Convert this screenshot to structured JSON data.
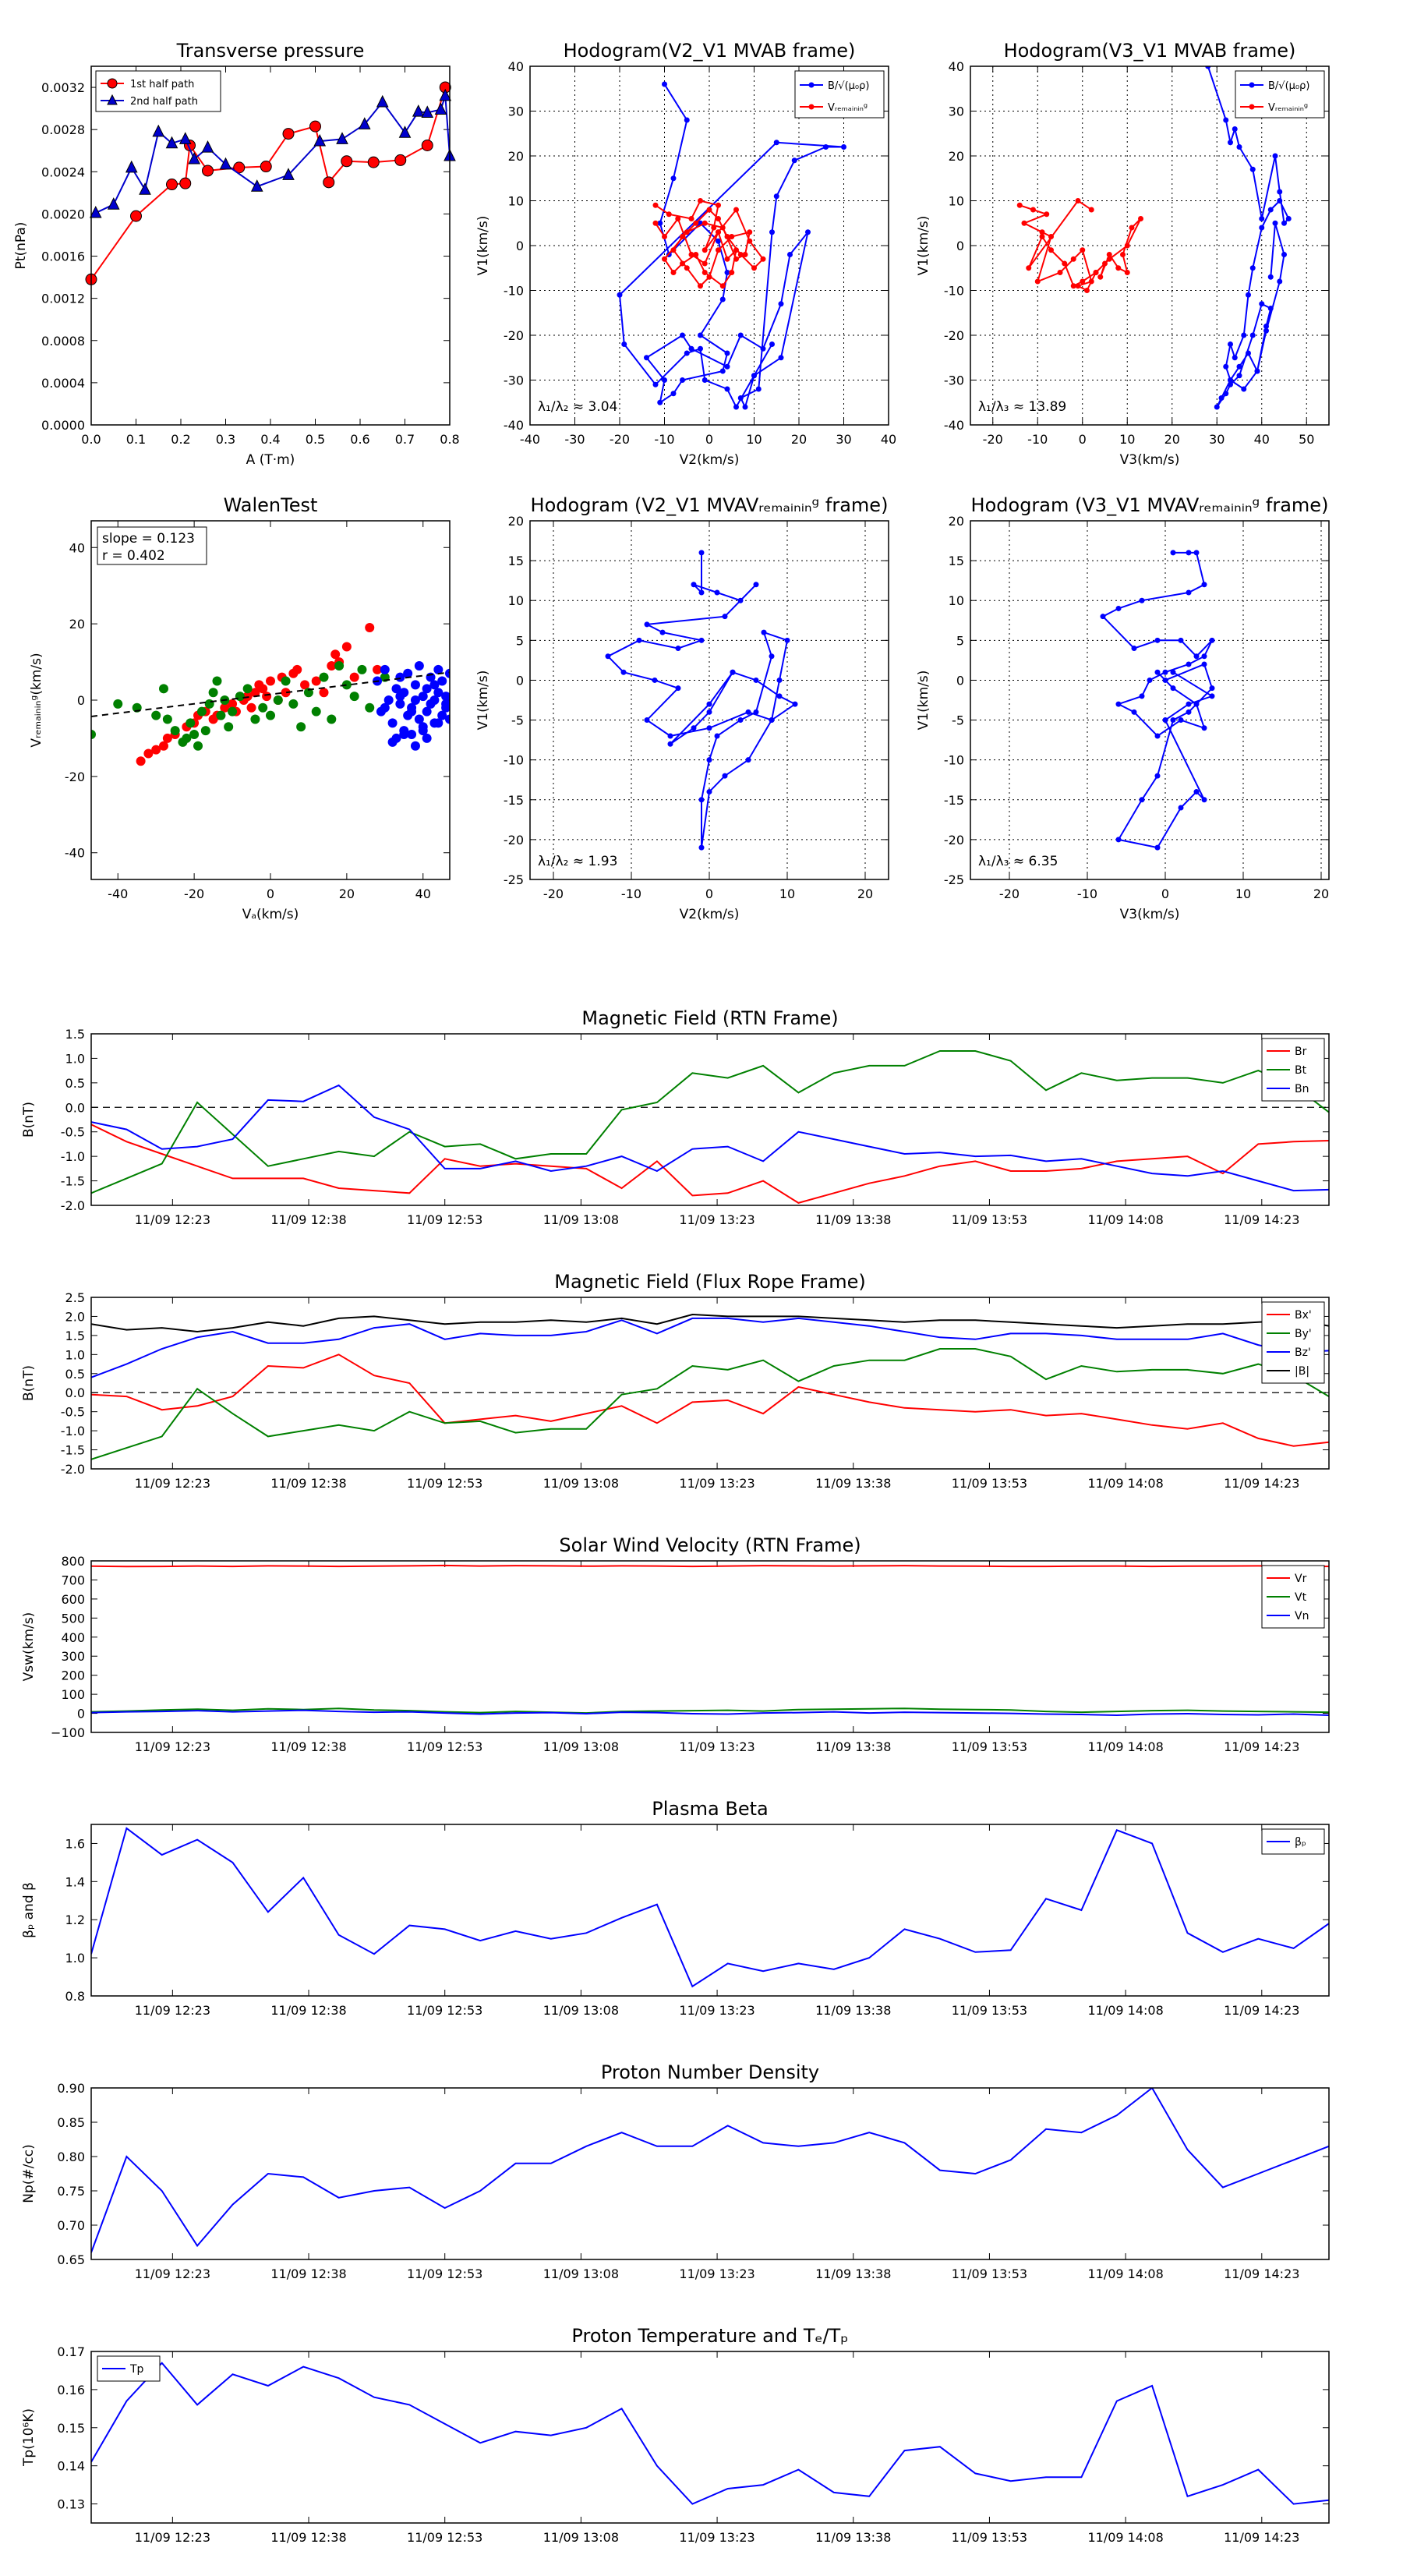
{
  "chart_data": [
    {
      "id": "pt",
      "type": "line",
      "title": "Transverse pressure",
      "xlabel": "A (T·m)",
      "ylabel": "Pt(nPa)",
      "xlim": [
        0,
        0.8
      ],
      "ylim": [
        0,
        0.0034
      ],
      "xticks": [
        0,
        0.1,
        0.2,
        0.3,
        0.4,
        0.5,
        0.6,
        0.7,
        0.8
      ],
      "xticklabels": [
        "0.0",
        "0.1",
        "0.2",
        "0.3",
        "0.4",
        "0.5",
        "0.6",
        "0.7",
        "0.8"
      ],
      "yticks": [
        0,
        0.0004,
        0.0008,
        0.0012,
        0.0016,
        0.002,
        0.0024,
        0.0028,
        0.0032
      ],
      "yticklabels": [
        "0.0000",
        "0.0004",
        "0.0008",
        "0.0012",
        "0.0016",
        "0.0020",
        "0.0024",
        "0.0028",
        "0.0032"
      ],
      "grid": false,
      "legend": "top-left",
      "series": [
        {
          "name": "1st half path",
          "color": "#ff0000",
          "marker": "circle",
          "x": [
            0.0,
            0.1,
            0.18,
            0.21,
            0.22,
            0.26,
            0.33,
            0.39,
            0.44,
            0.5,
            0.53,
            0.57,
            0.63,
            0.69,
            0.75,
            0.79
          ],
          "y": [
            0.00138,
            0.00198,
            0.00228,
            0.00229,
            0.00265,
            0.00241,
            0.00244,
            0.00245,
            0.00276,
            0.00283,
            0.0023,
            0.0025,
            0.00249,
            0.00251,
            0.00265,
            0.0032
          ]
        },
        {
          "name": "2nd half path",
          "color": "#0000cc",
          "marker": "triangle",
          "x": [
            0.01,
            0.05,
            0.09,
            0.12,
            0.15,
            0.18,
            0.21,
            0.23,
            0.26,
            0.3,
            0.37,
            0.44,
            0.51,
            0.56,
            0.61,
            0.65,
            0.7,
            0.73,
            0.75,
            0.78,
            0.79,
            0.8
          ],
          "y": [
            0.00201,
            0.00209,
            0.00244,
            0.00223,
            0.00278,
            0.00267,
            0.00271,
            0.00252,
            0.00263,
            0.00247,
            0.00226,
            0.00237,
            0.00269,
            0.00271,
            0.00285,
            0.00306,
            0.00277,
            0.00297,
            0.00296,
            0.00299,
            0.00312,
            0.00255
          ]
        }
      ]
    },
    {
      "id": "h1",
      "type": "line",
      "title": "Hodogram(V2_V1 MVAB frame)",
      "xlabel": "V2(km/s)",
      "ylabel": "V1(km/s)",
      "xlim": [
        -40,
        40
      ],
      "ylim": [
        -40,
        40
      ],
      "xticks": [
        -40,
        -30,
        -20,
        -10,
        0,
        10,
        20,
        30,
        40
      ],
      "yticks": [
        -40,
        -30,
        -20,
        -10,
        0,
        10,
        20,
        30,
        40
      ],
      "grid": true,
      "legend": "top-right",
      "annotation": "λ₁/λ₂ ≈ 3.04",
      "series": [
        {
          "name": "B/√(μ₀ρ)",
          "color": "#0000ff",
          "marker": "dot",
          "x": [
            -10,
            -5,
            -8,
            -11,
            -9,
            -2,
            2,
            4,
            3,
            -2,
            4,
            3,
            -6,
            -8,
            -11,
            -10,
            -14,
            -6,
            -4,
            4,
            7,
            12,
            16,
            18,
            22,
            16,
            10,
            8,
            7,
            11,
            14,
            15,
            19,
            26,
            30,
            15,
            -20,
            -19,
            -12,
            -5,
            -2,
            -1,
            4,
            6,
            10,
            14
          ],
          "x_note": "",
          "y": [
            36,
            28,
            15,
            5,
            -2,
            5,
            1,
            -6,
            -12,
            -20,
            -24,
            -28,
            -30,
            -33,
            -35,
            -30,
            -25,
            -20,
            -23,
            -27,
            -20,
            -23,
            -13,
            -2,
            3,
            -25,
            -29,
            -36,
            -34,
            -32,
            3,
            11,
            19,
            22,
            22,
            23,
            -11,
            -22,
            -31,
            -24,
            -23,
            -30,
            -32,
            -36,
            -29,
            -22
          ]
        }
      ]
    }
  ],
  "legend": {
    "pt_a": "1st half path",
    "pt_b": "2nd half path"
  }
}
